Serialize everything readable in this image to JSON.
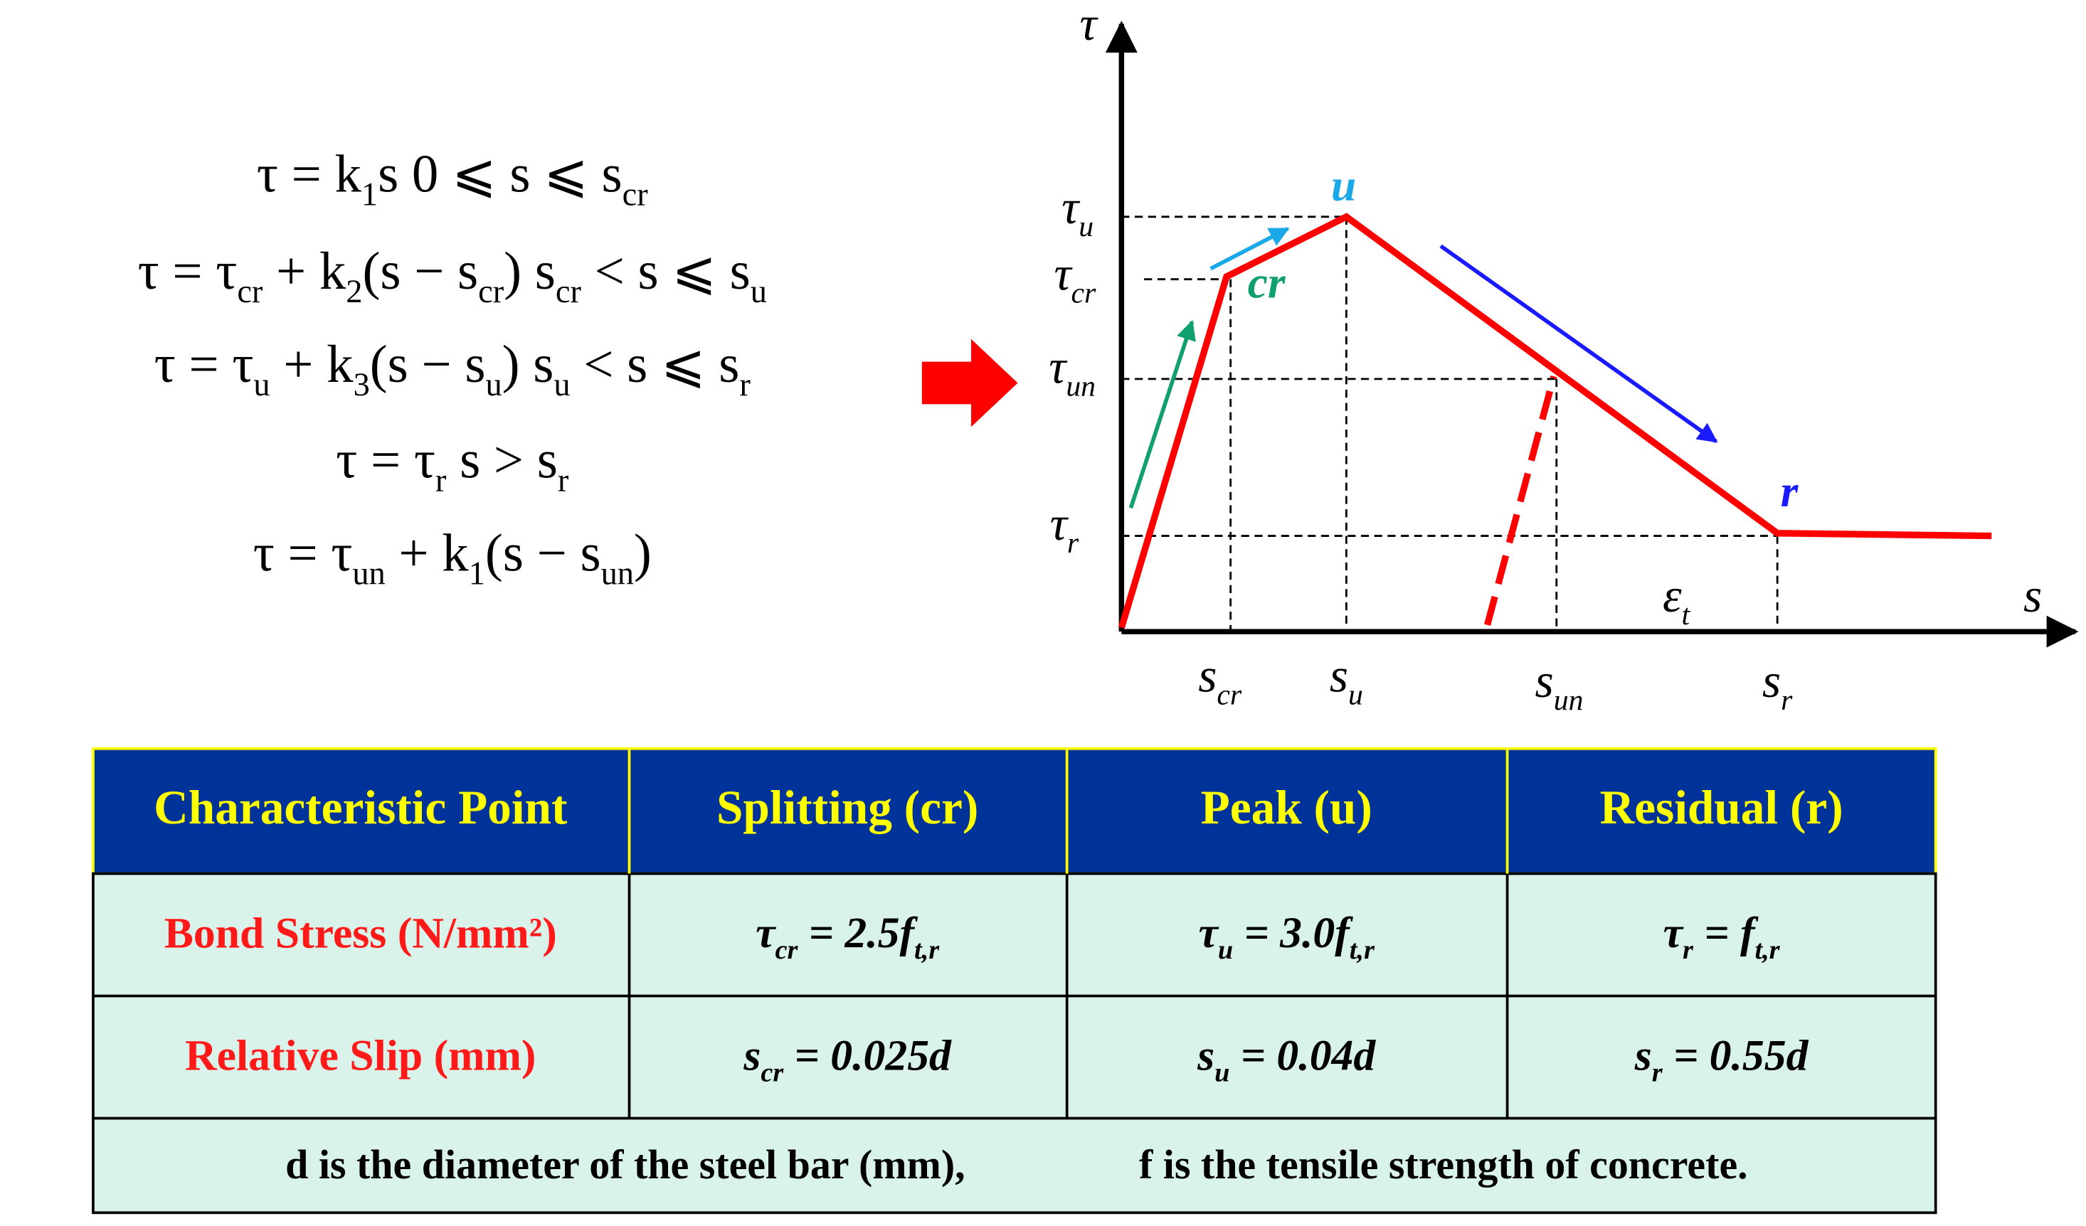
{
  "equations": [
    {
      "parts": [
        {
          "t": "τ = k"
        },
        {
          "t": "1",
          "sub": true
        },
        {
          "t": "s    0 ⩽ s ⩽ s"
        },
        {
          "t": "cr",
          "sub": true
        }
      ]
    },
    {
      "parts": [
        {
          "t": "τ = τ"
        },
        {
          "t": "cr",
          "sub": true
        },
        {
          "t": " + k"
        },
        {
          "t": "2",
          "sub": true
        },
        {
          "t": "(s − s"
        },
        {
          "t": "cr",
          "sub": true
        },
        {
          "t": ")    s"
        },
        {
          "t": "cr",
          "sub": true
        },
        {
          "t": " < s ⩽ s"
        },
        {
          "t": "u",
          "sub": true
        }
      ]
    },
    {
      "parts": [
        {
          "t": "τ = τ"
        },
        {
          "t": "u",
          "sub": true
        },
        {
          "t": " + k"
        },
        {
          "t": "3",
          "sub": true
        },
        {
          "t": "(s − s"
        },
        {
          "t": "u",
          "sub": true
        },
        {
          "t": ")    s"
        },
        {
          "t": "u",
          "sub": true
        },
        {
          "t": " < s ⩽ s"
        },
        {
          "t": "r",
          "sub": true
        }
      ]
    },
    {
      "parts": [
        {
          "t": "τ = τ"
        },
        {
          "t": "r",
          "sub": true
        },
        {
          "t": "    s > s"
        },
        {
          "t": "r",
          "sub": true
        }
      ]
    },
    {
      "parts": [
        {
          "t": "τ = τ"
        },
        {
          "t": "un",
          "sub": true
        },
        {
          "t": " + k"
        },
        {
          "t": "1",
          "sub": true
        },
        {
          "t": "(s − s"
        },
        {
          "t": "un",
          "sub": true
        },
        {
          "t": ")"
        }
      ]
    }
  ],
  "diagram": {
    "y_axis": {
      "parts": [
        {
          "t": "τ"
        }
      ]
    },
    "x_axis": {
      "parts": [
        {
          "t": "s"
        }
      ]
    },
    "tau_u": {
      "parts": [
        {
          "t": "τ"
        },
        {
          "t": "u",
          "sub": true
        }
      ]
    },
    "tau_cr": {
      "parts": [
        {
          "t": "τ"
        },
        {
          "t": "cr",
          "sub": true
        }
      ]
    },
    "tau_un": {
      "parts": [
        {
          "t": "τ"
        },
        {
          "t": "un",
          "sub": true
        }
      ]
    },
    "tau_r": {
      "parts": [
        {
          "t": "τ"
        },
        {
          "t": "r",
          "sub": true
        }
      ]
    },
    "s_cr": {
      "parts": [
        {
          "t": "s"
        },
        {
          "t": "cr",
          "sub": true
        }
      ]
    },
    "s_u": {
      "parts": [
        {
          "t": "s"
        },
        {
          "t": "u",
          "sub": true
        }
      ]
    },
    "s_un": {
      "parts": [
        {
          "t": "s"
        },
        {
          "t": "un",
          "sub": true
        }
      ]
    },
    "s_r": {
      "parts": [
        {
          "t": "s"
        },
        {
          "t": "r",
          "sub": true
        }
      ]
    },
    "eps_t": {
      "parts": [
        {
          "t": "ε"
        },
        {
          "t": "t",
          "sub": true
        }
      ]
    },
    "point_u": "u",
    "point_cr": "cr",
    "point_r": "r"
  },
  "table": {
    "header": [
      "Characteristic Point",
      "Splitting (cr)",
      "Peak (u)",
      "Residual (r)"
    ],
    "rows": [
      {
        "label": "Bond Stress (N/mm²)",
        "cells": [
          {
            "parts": [
              {
                "t": "τ"
              },
              {
                "t": "cr",
                "sub": true
              },
              {
                "t": " = 2.5f"
              },
              {
                "t": "t,r",
                "sub": true
              }
            ]
          },
          {
            "parts": [
              {
                "t": "τ"
              },
              {
                "t": "u",
                "sub": true
              },
              {
                "t": " = 3.0f"
              },
              {
                "t": "t,r",
                "sub": true
              }
            ]
          },
          {
            "parts": [
              {
                "t": "τ"
              },
              {
                "t": "r",
                "sub": true
              },
              {
                "t": " = f"
              },
              {
                "t": "t,r",
                "sub": true
              }
            ]
          }
        ]
      },
      {
        "label": "Relative Slip (mm)",
        "cells": [
          {
            "parts": [
              {
                "t": "s"
              },
              {
                "t": "cr",
                "sub": true
              },
              {
                "t": " = 0.025d"
              }
            ]
          },
          {
            "parts": [
              {
                "t": "s"
              },
              {
                "t": "u",
                "sub": true
              },
              {
                "t": " = 0.04d"
              }
            ]
          },
          {
            "parts": [
              {
                "t": "s"
              },
              {
                "t": "r",
                "sub": true
              },
              {
                "t": " = 0.55d"
              }
            ]
          }
        ]
      }
    ],
    "note": [
      "d is the diameter of the steel bar (mm),",
      "f is the tensile strength of concrete."
    ]
  }
}
